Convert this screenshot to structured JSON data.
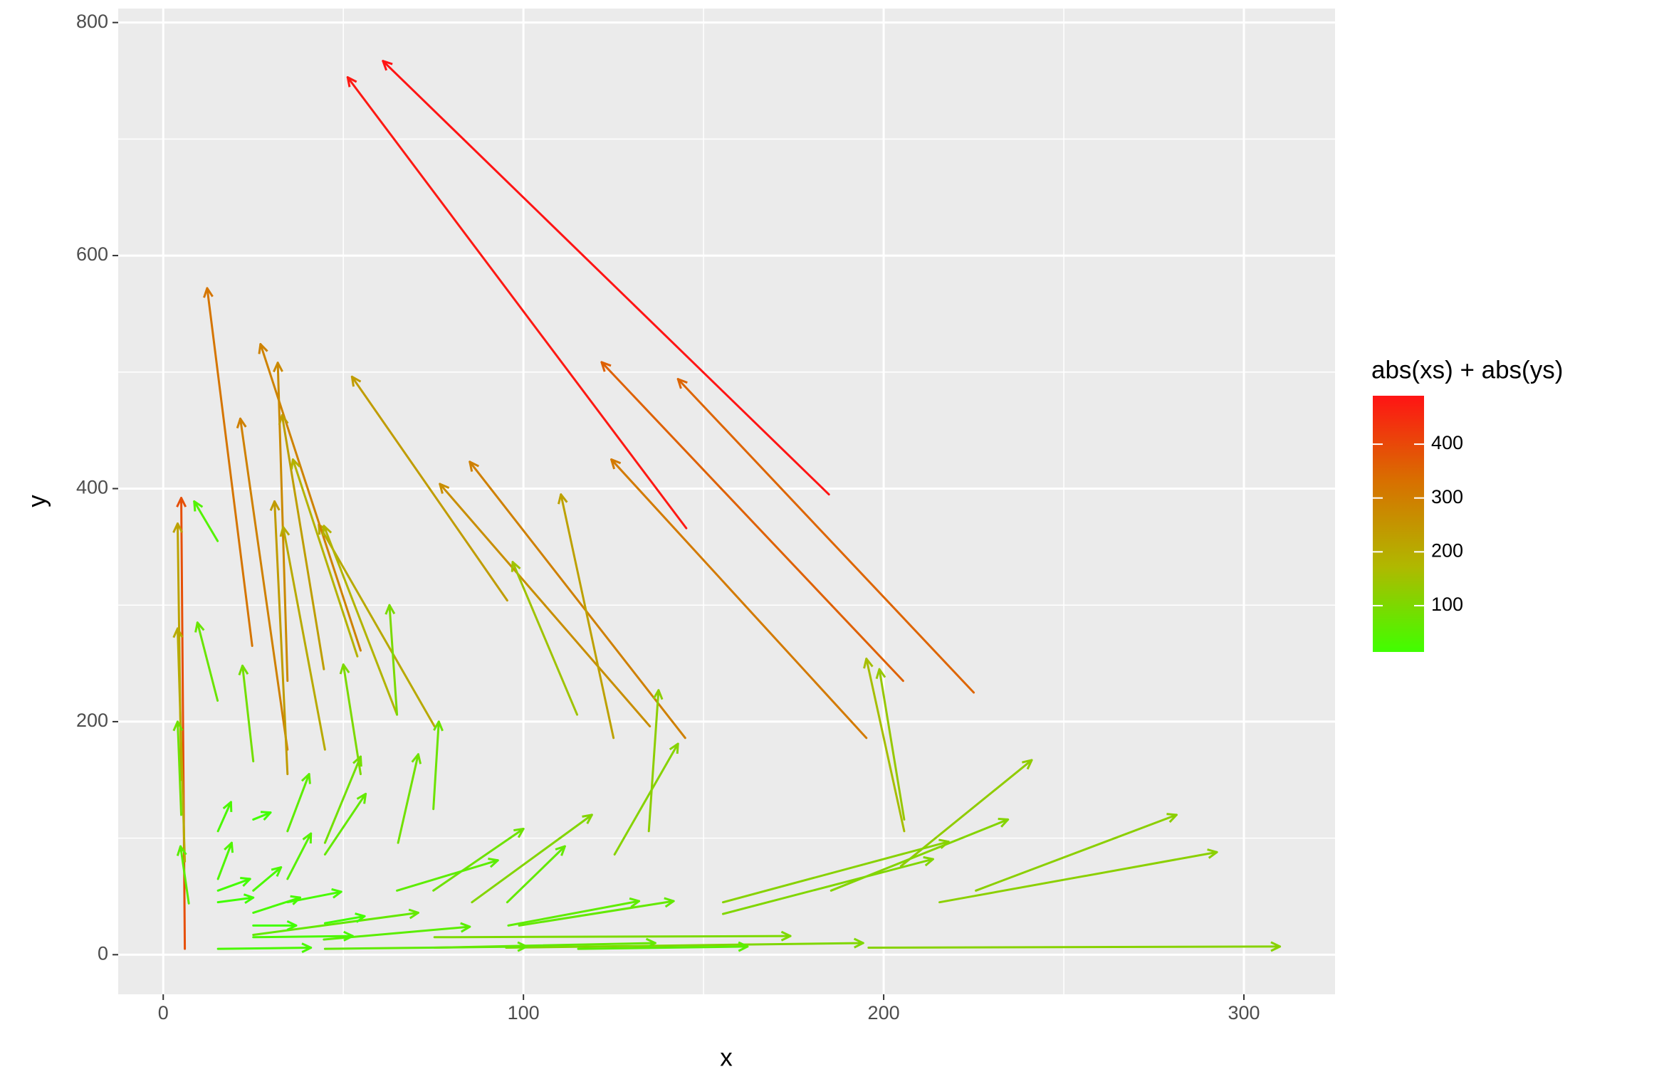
{
  "chart_data": {
    "type": "segment",
    "xlabel": "x",
    "ylabel": "y",
    "legend_title": "abs(xs) + abs(ys)",
    "xlim": [
      -12.5,
      325.3
    ],
    "ylim": [
      -34,
      812
    ],
    "xticks": [
      0,
      100,
      200,
      300
    ],
    "yticks": [
      0,
      200,
      400,
      600,
      800
    ],
    "xminor": [
      50,
      150,
      250
    ],
    "yminor": [
      100,
      300,
      500,
      700
    ],
    "grid": true,
    "colorlim": [
      14,
      490
    ],
    "colorticks": [
      100,
      200,
      300,
      400
    ],
    "colors": [
      "#40FF00",
      "#B0B800",
      "#D87000",
      "#FF1414"
    ],
    "x": [
      145.2,
      184.8,
      205.4,
      225,
      195.2,
      24.7,
      144.9,
      135.1,
      125,
      114.9,
      95.5,
      75.3,
      54.8,
      34.5,
      44.6,
      34.5,
      34.5,
      53.9,
      64.9,
      44.9,
      15.1,
      205.7,
      205.7,
      134.8,
      125.3,
      204.8,
      225.6,
      215.5,
      195.8,
      185.4,
      155.4,
      155.4,
      95.5,
      85.7,
      75,
      64.9,
      65.2,
      75,
      44.9,
      44.9,
      54.8,
      64.9,
      34.5,
      34.5,
      25,
      95.8,
      98.8,
      75.3,
      95.2,
      115.2,
      15.2,
      44.9,
      75.3,
      44.6,
      25,
      44.9,
      34.5,
      25,
      15.2,
      15.2,
      25,
      15.2,
      15.2,
      25,
      25,
      25,
      6,
      5,
      6,
      5,
      15.1,
      7.1
    ],
    "y": [
      366,
      395,
      235,
      225,
      186,
      265,
      186,
      196,
      186,
      206,
      304,
      196,
      261,
      235,
      245,
      176,
      155,
      256,
      206,
      176,
      355,
      106,
      116,
      106,
      86,
      76,
      55,
      45,
      6,
      55,
      45,
      35,
      45,
      45,
      55,
      55,
      96,
      125,
      96,
      86,
      155,
      206,
      106,
      65,
      166,
      25,
      25,
      15,
      6,
      5,
      5,
      5,
      6,
      13,
      17,
      27,
      45,
      36,
      45,
      55,
      55,
      65,
      106,
      116,
      25,
      15,
      5,
      150,
      80,
      120,
      218,
      44
    ],
    "xend": [
      51.2,
      61,
      121.7,
      142.9,
      124.4,
      12.2,
      85.1,
      76.8,
      110.4,
      97,
      52.4,
      43.2,
      27,
      31.8,
      33,
      21.4,
      30.9,
      36,
      44.6,
      33.3,
      8.6,
      195.2,
      198.8,
      137.5,
      142.9,
      241.1,
      281.3,
      292.5,
      310,
      234.5,
      218,
      213.7,
      111.5,
      119,
      100,
      92.9,
      70.8,
      76.5,
      54.8,
      56.2,
      50,
      62.8,
      40.5,
      41,
      22,
      132.1,
      141.7,
      174.1,
      194.3,
      162.2,
      41,
      100.9,
      136.6,
      85.1,
      70.8,
      55.9,
      49.4,
      38,
      25,
      24.1,
      32.7,
      19,
      18.8,
      29.8,
      36.9,
      52.6,
      5,
      4,
      4,
      4,
      9.5,
      4.8
    ],
    "yend": [
      753,
      767,
      508.5,
      494,
      425,
      572,
      423,
      404,
      395,
      337,
      496,
      369,
      524,
      508,
      463,
      460,
      389,
      425,
      368,
      367,
      389,
      254,
      245,
      227,
      181,
      167,
      120,
      88,
      7,
      116,
      97,
      82,
      93,
      120,
      108,
      81,
      172,
      200,
      170,
      138,
      249,
      300,
      155,
      104,
      248,
      46,
      46,
      16,
      10,
      7,
      6,
      7,
      10,
      24,
      36,
      33,
      54,
      49,
      49,
      65,
      75,
      96,
      131,
      122,
      25,
      16,
      392,
      370,
      280,
      200,
      285,
      93
    ]
  }
}
